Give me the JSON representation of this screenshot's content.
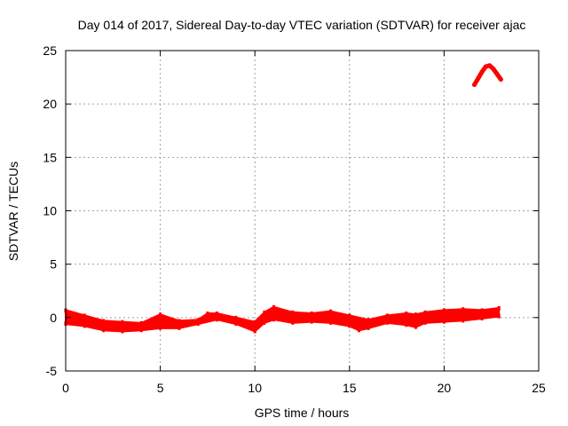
{
  "chart_data": {
    "type": "scatter",
    "title": "Day 014 of 2017, Sidereal Day-to-day VTEC variation (SDTVAR) for receiver ajac",
    "xlabel": "GPS time / hours",
    "ylabel": "SDTVAR / TECUs",
    "xlim": [
      0,
      25
    ],
    "ylim": [
      -5,
      25
    ],
    "xticks": [
      0,
      5,
      10,
      15,
      20,
      25
    ],
    "yticks": [
      -5,
      0,
      5,
      10,
      15,
      20,
      25
    ],
    "grid": true,
    "series_color": "#ff0000",
    "series": [
      {
        "name": "SDTVAR band",
        "points_low": [
          [
            0,
            -0.6
          ],
          [
            1,
            -0.8
          ],
          [
            2,
            -1.2
          ],
          [
            3,
            -1.3
          ],
          [
            4,
            -1.2
          ],
          [
            5,
            -1.0
          ],
          [
            6,
            -1.0
          ],
          [
            7,
            -0.6
          ],
          [
            8,
            -0.2
          ],
          [
            9,
            -0.6
          ],
          [
            10,
            -1.3
          ],
          [
            10.5,
            -0.5
          ],
          [
            11,
            -0.2
          ],
          [
            12,
            -0.5
          ],
          [
            13,
            -0.4
          ],
          [
            14,
            -0.5
          ],
          [
            15,
            -0.8
          ],
          [
            15.5,
            -1.2
          ],
          [
            16,
            -1.0
          ],
          [
            17,
            -0.5
          ],
          [
            18,
            -0.7
          ],
          [
            18.5,
            -0.9
          ],
          [
            19,
            -0.5
          ],
          [
            20,
            -0.4
          ],
          [
            21,
            -0.3
          ],
          [
            22,
            -0.1
          ],
          [
            22.9,
            0.1
          ]
        ],
        "points_high": [
          [
            0,
            0.7
          ],
          [
            1,
            0.2
          ],
          [
            2,
            -0.3
          ],
          [
            3,
            -0.4
          ],
          [
            4,
            -0.5
          ],
          [
            5,
            0.3
          ],
          [
            6,
            -0.3
          ],
          [
            7,
            -0.2
          ],
          [
            7.5,
            0.4
          ],
          [
            8,
            0.4
          ],
          [
            9,
            0.0
          ],
          [
            10,
            -0.4
          ],
          [
            10.5,
            0.5
          ],
          [
            11,
            1.0
          ],
          [
            12,
            0.5
          ],
          [
            13,
            0.4
          ],
          [
            14,
            0.6
          ],
          [
            15,
            0.2
          ],
          [
            16,
            -0.2
          ],
          [
            17,
            0.2
          ],
          [
            18,
            0.4
          ],
          [
            18.5,
            0.3
          ],
          [
            19,
            0.5
          ],
          [
            20,
            0.7
          ],
          [
            21,
            0.8
          ],
          [
            22,
            0.7
          ],
          [
            22.9,
            0.9
          ]
        ]
      },
      {
        "name": "SDTVAR arc",
        "points": [
          [
            21.6,
            21.8
          ],
          [
            21.8,
            22.4
          ],
          [
            22.0,
            23.0
          ],
          [
            22.2,
            23.5
          ],
          [
            22.4,
            23.6
          ],
          [
            22.6,
            23.3
          ],
          [
            22.8,
            22.8
          ],
          [
            23.0,
            22.3
          ]
        ]
      }
    ]
  }
}
